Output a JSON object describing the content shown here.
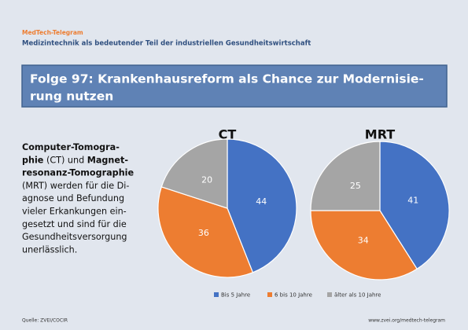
{
  "header": {
    "brand": "MedTech-Telegram",
    "subtitle": "Medizintechnik als bedeutender Teil der industriellen Gesundheitswirtschaft",
    "title_lines": [
      "Folge 97: Krankenhausreform als Chance zur Modernisie-",
      "rung nutzen"
    ]
  },
  "body_lines": [
    [
      {
        "text": "Computer-Tomogra-",
        "bold": true
      }
    ],
    [
      {
        "text": "phie",
        "bold": true
      },
      {
        "text": " (CT) und ",
        "bold": false
      },
      {
        "text": "Magnet-",
        "bold": true
      }
    ],
    [
      {
        "text": "resonanz-Tomographie",
        "bold": true
      }
    ],
    [
      {
        "text": "(MRT) werden für die Di-",
        "bold": false
      }
    ],
    [
      {
        "text": "agnose und Befundung",
        "bold": false
      }
    ],
    [
      {
        "text": "vieler Erkankungen ein-",
        "bold": false
      }
    ],
    [
      {
        "text": "gesetzt und sind für die",
        "bold": false
      }
    ],
    [
      {
        "text": "Gesundheitsversorgung",
        "bold": false
      }
    ],
    [
      {
        "text": "unerlässlich.",
        "bold": false
      }
    ]
  ],
  "chart_data": {
    "type": "pie",
    "categories": [
      "Bis 5 Jahre",
      "6 bis 10 Jahre",
      "älter als 10 Jahre"
    ],
    "colors": [
      "#4472c4",
      "#ed7d31",
      "#a5a5a5"
    ],
    "series": [
      {
        "name": "CT",
        "values": [
          44,
          36,
          20
        ]
      },
      {
        "name": "MRT",
        "values": [
          41,
          34,
          25
        ]
      }
    ]
  },
  "footer": {
    "source": "Quelle: ZVEI/COCIR",
    "url": "www.zvei.org/medtech-telegram"
  }
}
